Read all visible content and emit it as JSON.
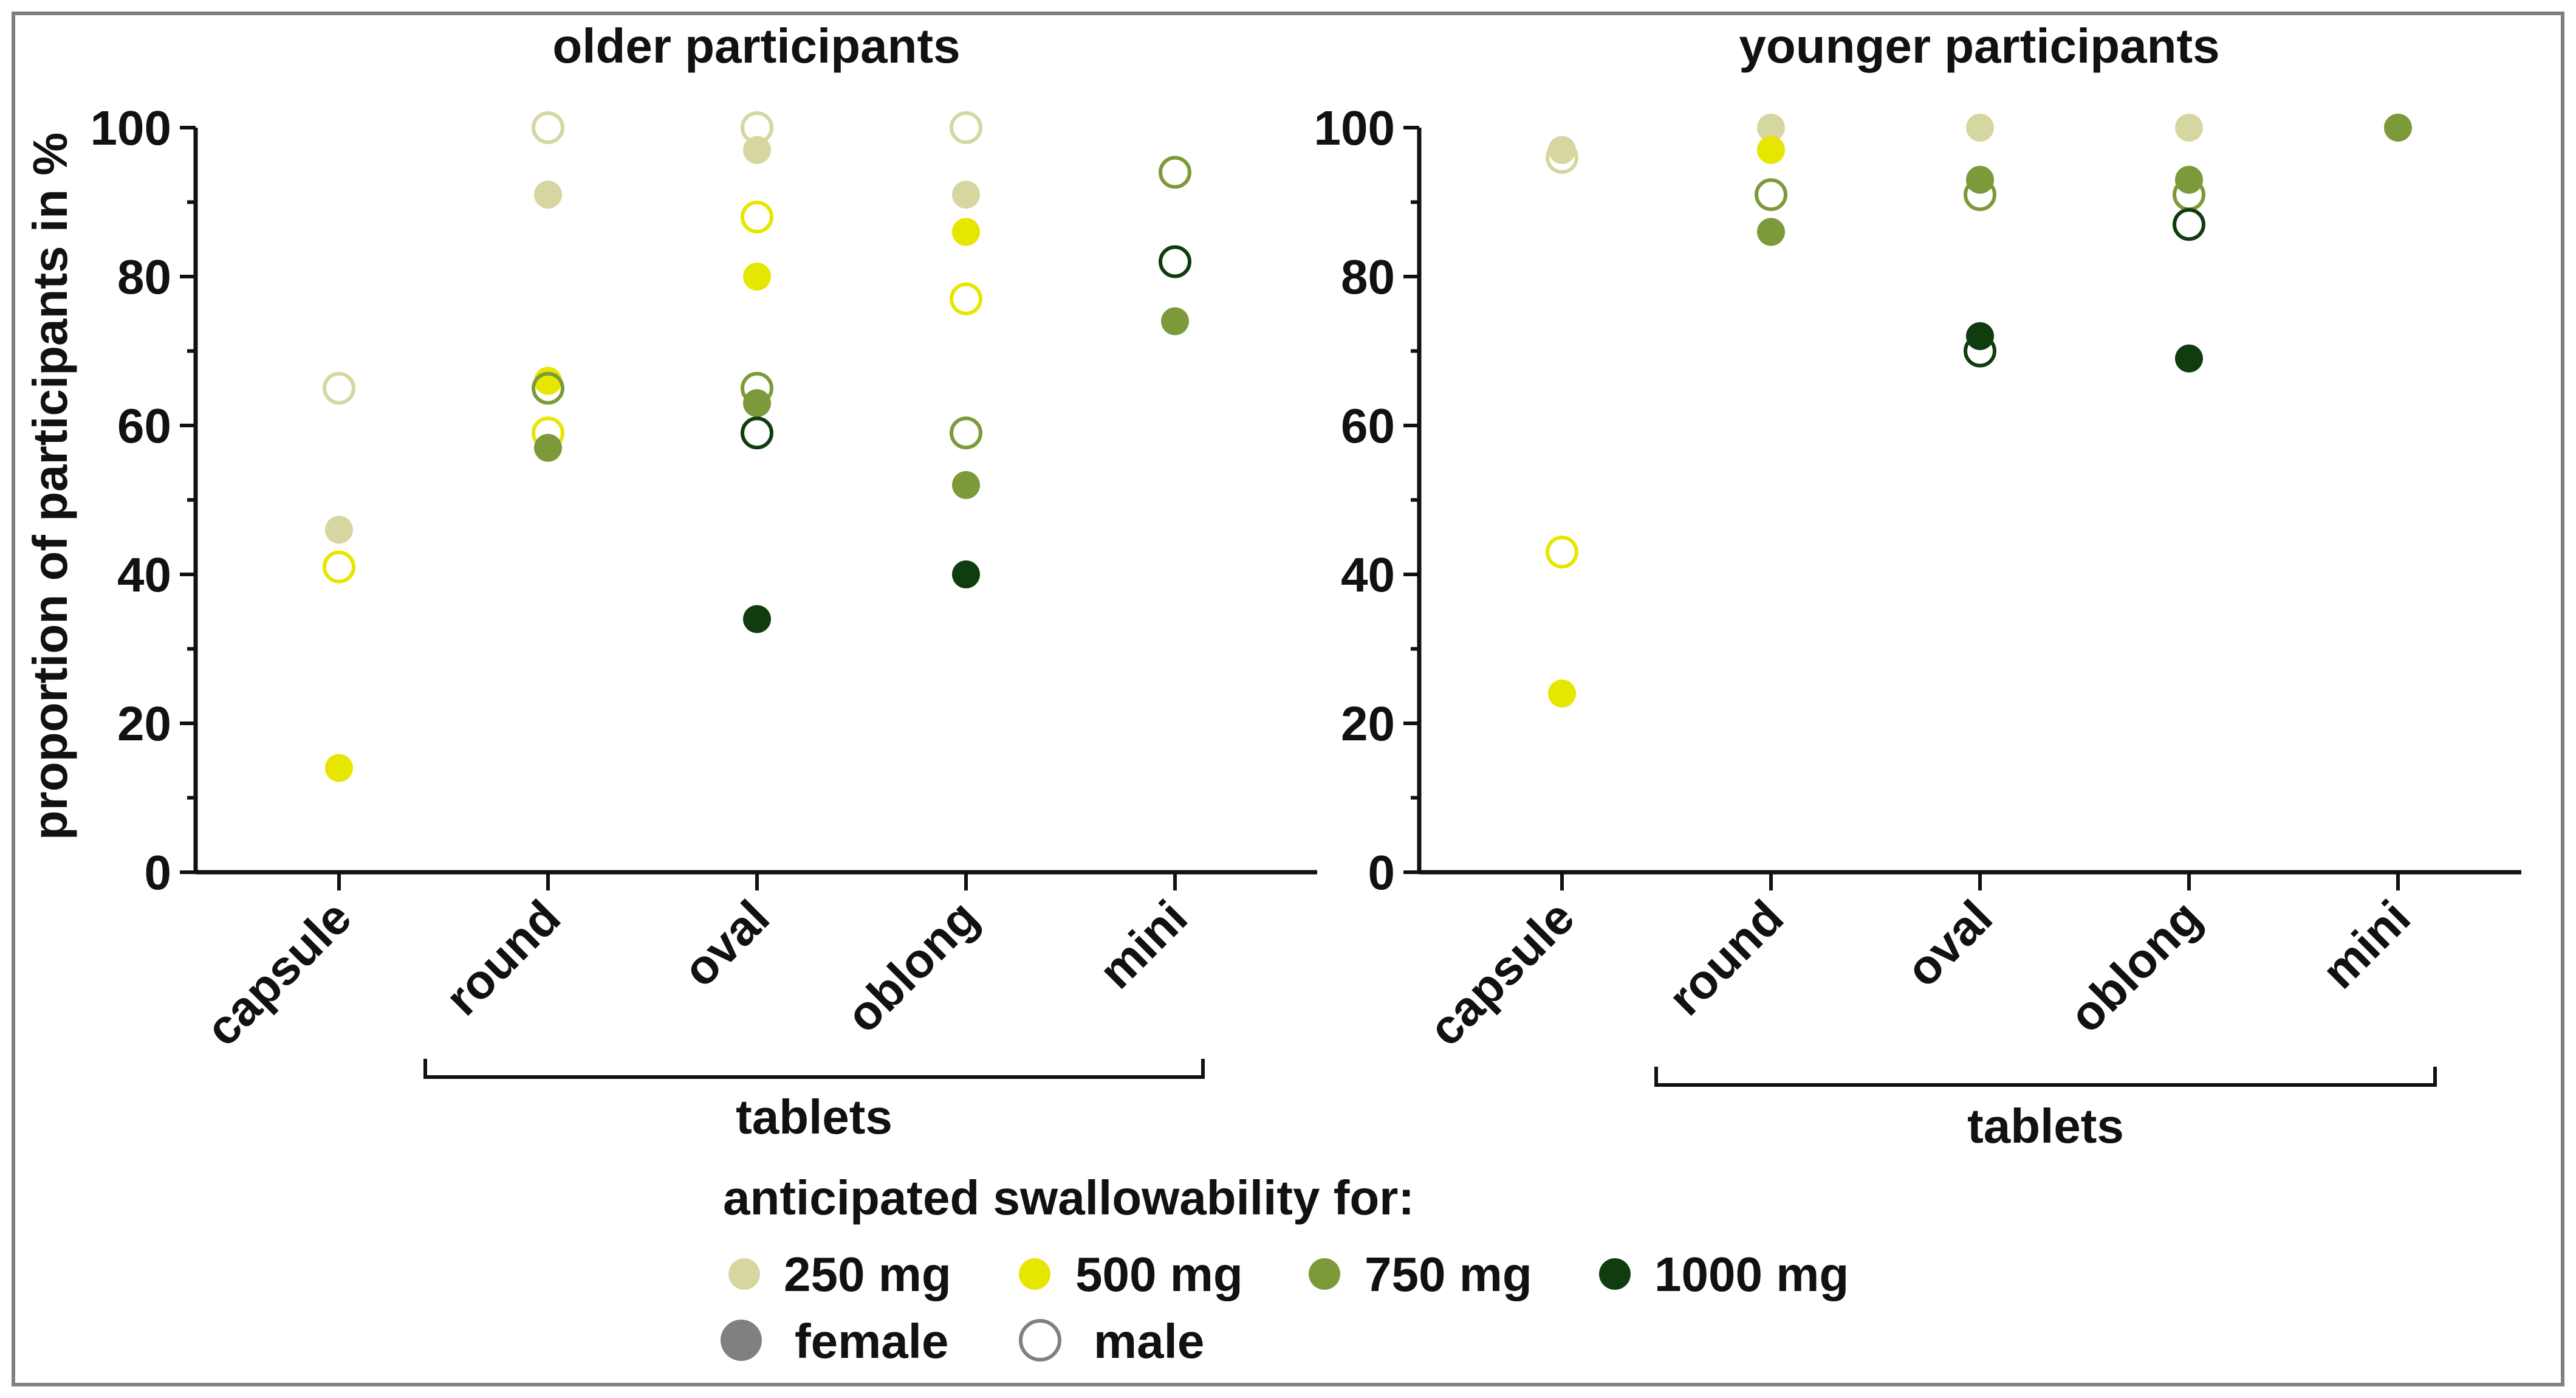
{
  "chart_data": [
    {
      "type": "scatter",
      "title": "older participants",
      "ylabel": "proportion of participants in %",
      "ylim": [
        0,
        100
      ],
      "yticks": [
        0,
        20,
        40,
        60,
        80,
        100
      ],
      "categories": [
        "capsule",
        "round",
        "oval",
        "oblong",
        "mini"
      ],
      "group_label": "tablets",
      "series": [
        {
          "name": "250 mg female",
          "dose": "250 mg",
          "sex": "female",
          "values": [
            46,
            91,
            97,
            91,
            null
          ]
        },
        {
          "name": "250 mg male",
          "dose": "250 mg",
          "sex": "male",
          "values": [
            65,
            100,
            100,
            100,
            null
          ]
        },
        {
          "name": "500 mg female",
          "dose": "500 mg",
          "sex": "female",
          "values": [
            14,
            66,
            80,
            86,
            null
          ]
        },
        {
          "name": "500 mg male",
          "dose": "500 mg",
          "sex": "male",
          "values": [
            41,
            59,
            88,
            77,
            null
          ]
        },
        {
          "name": "750 mg female",
          "dose": "750 mg",
          "sex": "female",
          "values": [
            null,
            57,
            63,
            52,
            74
          ]
        },
        {
          "name": "750 mg male",
          "dose": "750 mg",
          "sex": "male",
          "values": [
            null,
            65,
            65,
            59,
            94
          ]
        },
        {
          "name": "1000 mg female",
          "dose": "1000 mg",
          "sex": "female",
          "values": [
            null,
            null,
            34,
            40,
            null
          ]
        },
        {
          "name": "1000 mg male",
          "dose": "1000 mg",
          "sex": "male",
          "values": [
            null,
            null,
            59,
            null,
            82
          ]
        }
      ]
    },
    {
      "type": "scatter",
      "title": "younger participants",
      "ylabel": "",
      "ylim": [
        0,
        100
      ],
      "yticks": [
        0,
        20,
        40,
        60,
        80,
        100
      ],
      "categories": [
        "capsule",
        "round",
        "oval",
        "oblong",
        "mini"
      ],
      "group_label": "tablets",
      "series": [
        {
          "name": "250 mg female",
          "dose": "250 mg",
          "sex": "female",
          "values": [
            97,
            100,
            100,
            100,
            null
          ]
        },
        {
          "name": "250 mg male",
          "dose": "250 mg",
          "sex": "male",
          "values": [
            96,
            null,
            null,
            null,
            null
          ]
        },
        {
          "name": "500 mg female",
          "dose": "500 mg",
          "sex": "female",
          "values": [
            24,
            97,
            null,
            null,
            null
          ]
        },
        {
          "name": "500 mg male",
          "dose": "500 mg",
          "sex": "male",
          "values": [
            43,
            null,
            null,
            null,
            null
          ]
        },
        {
          "name": "750 mg female",
          "dose": "750 mg",
          "sex": "female",
          "values": [
            null,
            86,
            93,
            93,
            100
          ]
        },
        {
          "name": "750 mg male",
          "dose": "750 mg",
          "sex": "male",
          "values": [
            null,
            91,
            91,
            91,
            null
          ]
        },
        {
          "name": "1000 mg female",
          "dose": "1000 mg",
          "sex": "female",
          "values": [
            null,
            null,
            72,
            69,
            null
          ]
        },
        {
          "name": "1000 mg male",
          "dose": "1000 mg",
          "sex": "male",
          "values": [
            null,
            null,
            70,
            87,
            null
          ]
        }
      ]
    }
  ],
  "colors": {
    "250 mg": "#d6d6a0",
    "500 mg": "#e6e600",
    "750 mg": "#7d9a3a",
    "1000 mg": "#0f3d0f",
    "neutral": "#808080",
    "axis": "#111111",
    "frame": "#808080"
  },
  "legend": {
    "title": "anticipated swallowability for:",
    "doses": [
      {
        "label": "250 mg",
        "key": "250 mg"
      },
      {
        "label": "500 mg",
        "key": "500 mg"
      },
      {
        "label": "750 mg",
        "key": "750 mg"
      },
      {
        "label": "1000 mg",
        "key": "1000 mg"
      }
    ],
    "female_label": "female",
    "male_label": "male"
  }
}
